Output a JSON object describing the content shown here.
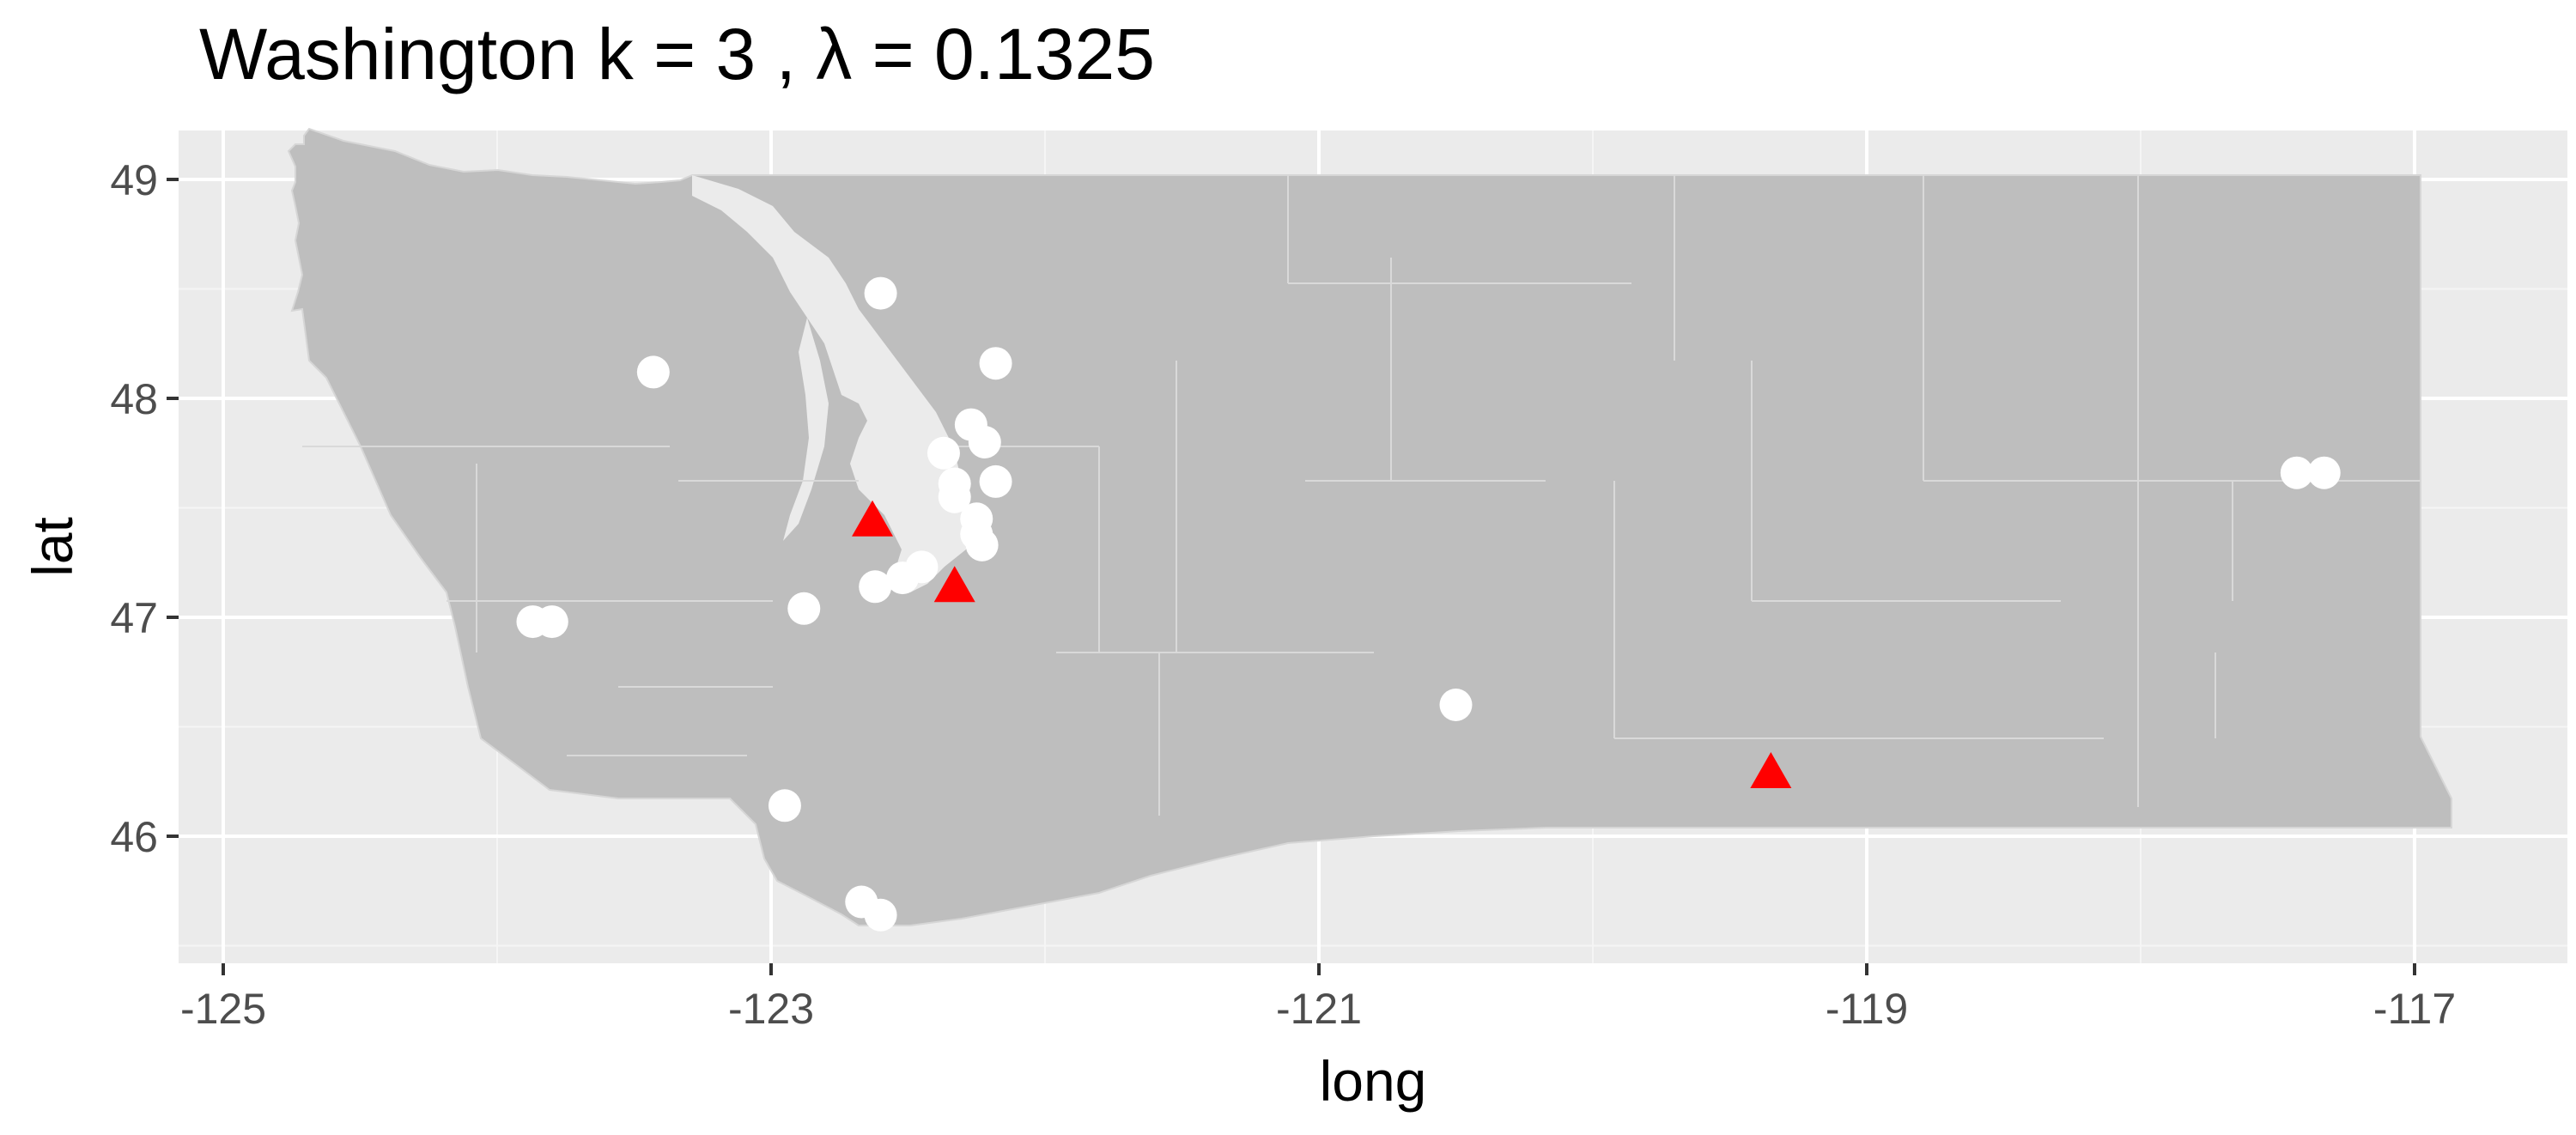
{
  "chart_data": {
    "type": "scatter",
    "title": "Washington  k =  3 ,  λ  =  0.1325",
    "xlabel": "long",
    "ylabel": "lat",
    "xlim": [
      -125.2,
      -116.6
    ],
    "ylim": [
      45.4,
      49.1
    ],
    "x_ticks": [
      -125,
      -123,
      -121,
      -119,
      -117
    ],
    "x_tick_labels": [
      "-125",
      "-123",
      "-121",
      "-119",
      "-117"
    ],
    "y_ticks": [
      46,
      47,
      48,
      49
    ],
    "y_tick_labels": [
      "46",
      "47",
      "48",
      "49"
    ],
    "grid": true,
    "background": "map of Washington state counties",
    "series": [
      {
        "marker": "circle",
        "color": "#ffffff",
        "points": [
          {
            "x": -122.6,
            "y": 48.48
          },
          {
            "x": -123.43,
            "y": 48.12
          },
          {
            "x": -122.18,
            "y": 48.16
          },
          {
            "x": -122.27,
            "y": 47.88
          },
          {
            "x": -122.22,
            "y": 47.8
          },
          {
            "x": -122.37,
            "y": 47.75
          },
          {
            "x": -122.33,
            "y": 47.61
          },
          {
            "x": -122.18,
            "y": 47.62
          },
          {
            "x": -122.33,
            "y": 47.55
          },
          {
            "x": -122.25,
            "y": 47.45
          },
          {
            "x": -122.25,
            "y": 47.38
          },
          {
            "x": -122.23,
            "y": 47.33
          },
          {
            "x": -122.45,
            "y": 47.23
          },
          {
            "x": -122.52,
            "y": 47.18
          },
          {
            "x": -122.62,
            "y": 47.14
          },
          {
            "x": -122.88,
            "y": 47.04
          },
          {
            "x": -123.87,
            "y": 46.98
          },
          {
            "x": -123.8,
            "y": 46.98
          },
          {
            "x": -122.95,
            "y": 46.14
          },
          {
            "x": -122.67,
            "y": 45.7
          },
          {
            "x": -122.6,
            "y": 45.64
          },
          {
            "x": -120.5,
            "y": 46.6
          },
          {
            "x": -117.43,
            "y": 47.66
          },
          {
            "x": -117.33,
            "y": 47.66
          }
        ]
      },
      {
        "marker": "triangle",
        "color": "#ff0000",
        "points": [
          {
            "x": -122.63,
            "y": 47.44
          },
          {
            "x": -122.33,
            "y": 47.14
          },
          {
            "x": -119.35,
            "y": 46.29
          }
        ]
      }
    ]
  }
}
